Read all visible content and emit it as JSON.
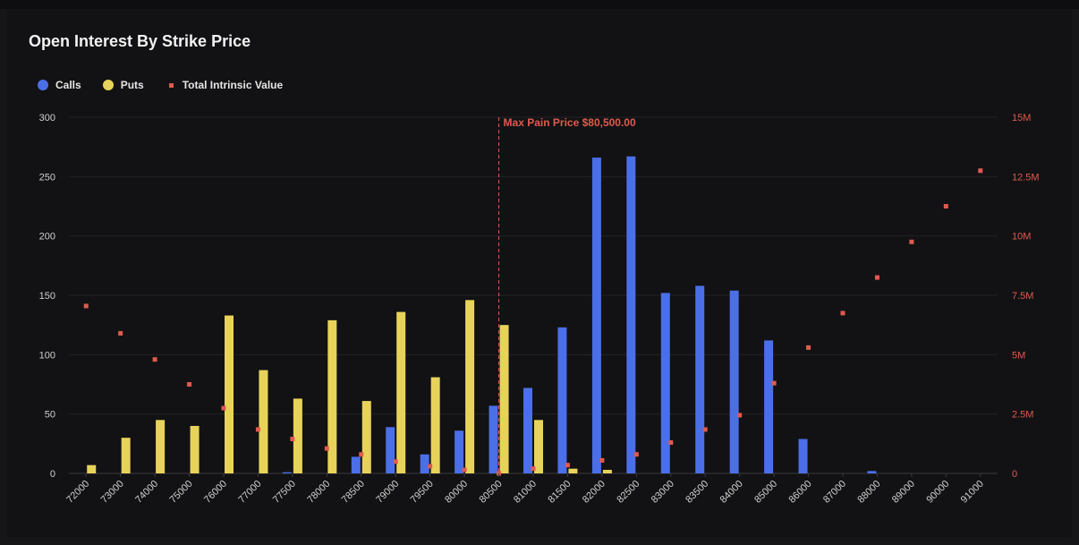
{
  "chart_data": {
    "type": "bar",
    "title": "Open Interest By Strike Price",
    "categories": [
      "72000",
      "73000",
      "74000",
      "75000",
      "76000",
      "77000",
      "77500",
      "78000",
      "78500",
      "79000",
      "79500",
      "80000",
      "80500",
      "81000",
      "81500",
      "82000",
      "82500",
      "83000",
      "83500",
      "84000",
      "85000",
      "86000",
      "87000",
      "88000",
      "89000",
      "90000",
      "91000"
    ],
    "series": [
      {
        "name": "Calls",
        "color": "#4a6fe8",
        "values": [
          0,
          0,
          0,
          0,
          0,
          0,
          1,
          0,
          14,
          39,
          16,
          36,
          57,
          72,
          123,
          266,
          267,
          152,
          158,
          154,
          112,
          29,
          0,
          2,
          0,
          0,
          0
        ]
      },
      {
        "name": "Puts",
        "color": "#e8d35a",
        "values": [
          7,
          30,
          45,
          40,
          133,
          87,
          63,
          129,
          61,
          136,
          81,
          146,
          125,
          45,
          4,
          3,
          0,
          0,
          0,
          0,
          0,
          0,
          0,
          0,
          0,
          0,
          0
        ]
      },
      {
        "name": "Total Intrinsic Value",
        "color": "#e05a4e",
        "axis": "right",
        "values": [
          7050000,
          5900000,
          4800000,
          3750000,
          2750000,
          1850000,
          1450000,
          1050000,
          800000,
          500000,
          300000,
          150000,
          0,
          200000,
          350000,
          550000,
          800000,
          1300000,
          1850000,
          2450000,
          3800000,
          5300000,
          6750000,
          8250000,
          9750000,
          11250000,
          12750000
        ]
      }
    ],
    "yleft": {
      "min": 0,
      "max": 300,
      "ticks": [
        "300",
        "250",
        "200",
        "150",
        "100",
        "50",
        "0"
      ],
      "tick_values": [
        300,
        250,
        200,
        150,
        100,
        50,
        0
      ]
    },
    "yright": {
      "min": 0,
      "max": 15000000,
      "ticks": [
        "15M",
        "12.5M",
        "10M",
        "7.5M",
        "5M",
        "2.5M",
        "0"
      ],
      "tick_values": [
        15000000,
        12500000,
        10000000,
        7500000,
        5000000,
        2500000,
        0
      ]
    },
    "annotation": {
      "label": "Max Pain Price $80,500.00",
      "category": "80500",
      "color": "#e05a4e"
    },
    "grid": true,
    "legend_position": "top-left"
  }
}
